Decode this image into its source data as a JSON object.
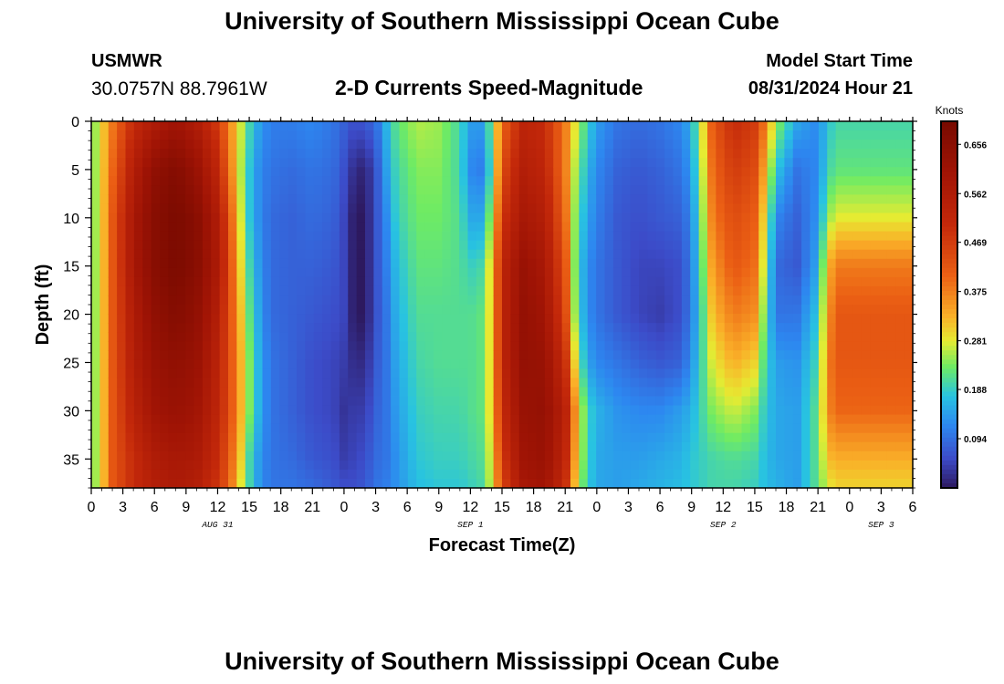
{
  "header": {
    "title": "University of Southern Mississippi Ocean Cube",
    "station": "USMWR",
    "coordinates": "30.0757N  88.7961W",
    "subtitle": "2-D Currents Speed-Magnitude",
    "model_start_label": "Model Start Time",
    "model_start_time": "08/31/2024 Hour 21"
  },
  "footer": {
    "title": "University of Southern Mississippi Ocean Cube"
  },
  "chart_data": {
    "type": "heatmap",
    "title": "2-D Currents Speed-Magnitude",
    "xlabel": "Forecast Time(Z)",
    "ylabel": "Depth (ft)",
    "x_unit": "hours since 08/31/2024 00Z",
    "xlim": [
      0,
      78
    ],
    "ylim": [
      0,
      38
    ],
    "y_inverted": true,
    "x_ticks": [
      0,
      3,
      6,
      9,
      12,
      15,
      18,
      21,
      24,
      27,
      30,
      33,
      36,
      39,
      42,
      45,
      48,
      51,
      54,
      57,
      60,
      63,
      66,
      69,
      72,
      75,
      78
    ],
    "x_tick_labels": [
      "0",
      "3",
      "6",
      "9",
      "12",
      "15",
      "18",
      "21",
      "0",
      "3",
      "6",
      "9",
      "12",
      "15",
      "18",
      "21",
      "0",
      "3",
      "6",
      "9",
      "12",
      "15",
      "18",
      "21",
      "0",
      "3",
      "6"
    ],
    "y_ticks": [
      0,
      5,
      10,
      15,
      20,
      25,
      30,
      35
    ],
    "y_tick_labels": [
      "0",
      "5",
      "10",
      "15",
      "20",
      "25",
      "30",
      "35"
    ],
    "day_labels": [
      {
        "hour": 12,
        "label": "AUG 31"
      },
      {
        "hour": 36,
        "label": "SEP 1"
      },
      {
        "hour": 60,
        "label": "SEP 2"
      },
      {
        "hour": 75,
        "label": "SEP 3"
      }
    ],
    "colorbar": {
      "label": "Knots",
      "range": [
        0,
        0.7
      ],
      "ticks": [
        0.656,
        0.562,
        0.469,
        0.375,
        0.281,
        0.188,
        0.094
      ],
      "tick_labels": [
        "0.656",
        "0.562",
        "0.469",
        "0.375",
        "0.281",
        "0.188",
        "0.094"
      ]
    },
    "depths": [
      0,
      5,
      10,
      15,
      20,
      25,
      30,
      35,
      38
    ],
    "profiles": [
      {
        "hour": 0,
        "speeds": [
          0.22,
          0.22,
          0.22,
          0.22,
          0.22,
          0.22,
          0.22,
          0.22,
          0.22
        ]
      },
      {
        "hour": 1,
        "speeds": [
          0.3,
          0.3,
          0.3,
          0.3,
          0.3,
          0.3,
          0.3,
          0.3,
          0.3
        ]
      },
      {
        "hour": 2,
        "speeds": [
          0.38,
          0.4,
          0.42,
          0.42,
          0.42,
          0.42,
          0.42,
          0.42,
          0.42
        ]
      },
      {
        "hour": 4,
        "speeds": [
          0.5,
          0.55,
          0.58,
          0.58,
          0.56,
          0.55,
          0.53,
          0.5,
          0.5
        ]
      },
      {
        "hour": 6,
        "speeds": [
          0.56,
          0.64,
          0.66,
          0.66,
          0.64,
          0.62,
          0.6,
          0.56,
          0.55
        ]
      },
      {
        "hour": 8,
        "speeds": [
          0.6,
          0.67,
          0.69,
          0.69,
          0.67,
          0.64,
          0.62,
          0.58,
          0.57
        ]
      },
      {
        "hour": 10,
        "speeds": [
          0.56,
          0.62,
          0.66,
          0.66,
          0.64,
          0.62,
          0.6,
          0.57,
          0.55
        ]
      },
      {
        "hour": 12,
        "speeds": [
          0.47,
          0.52,
          0.56,
          0.57,
          0.55,
          0.53,
          0.52,
          0.5,
          0.48
        ]
      },
      {
        "hour": 13,
        "speeds": [
          0.38,
          0.41,
          0.45,
          0.46,
          0.45,
          0.45,
          0.45,
          0.43,
          0.42
        ]
      },
      {
        "hour": 14,
        "speeds": [
          0.29,
          0.28,
          0.3,
          0.32,
          0.34,
          0.35,
          0.35,
          0.33,
          0.3
        ]
      },
      {
        "hour": 15,
        "speeds": [
          0.2,
          0.18,
          0.18,
          0.2,
          0.22,
          0.24,
          0.24,
          0.2,
          0.2
        ]
      },
      {
        "hour": 16,
        "speeds": [
          0.14,
          0.12,
          0.12,
          0.13,
          0.14,
          0.15,
          0.15,
          0.13,
          0.13
        ]
      },
      {
        "hour": 17,
        "speeds": [
          0.11,
          0.1,
          0.09,
          0.09,
          0.09,
          0.1,
          0.1,
          0.1,
          0.1
        ]
      },
      {
        "hour": 19,
        "speeds": [
          0.11,
          0.09,
          0.08,
          0.08,
          0.08,
          0.08,
          0.08,
          0.09,
          0.1
        ]
      },
      {
        "hour": 21,
        "speeds": [
          0.12,
          0.1,
          0.09,
          0.08,
          0.07,
          0.06,
          0.06,
          0.07,
          0.09
        ]
      },
      {
        "hour": 23,
        "speeds": [
          0.1,
          0.09,
          0.08,
          0.07,
          0.06,
          0.05,
          0.05,
          0.06,
          0.07
        ]
      },
      {
        "hour": 24,
        "speeds": [
          0.08,
          0.06,
          0.05,
          0.05,
          0.05,
          0.04,
          0.03,
          0.04,
          0.06
        ]
      },
      {
        "hour": 25,
        "speeds": [
          0.06,
          0.02,
          0.0,
          0.0,
          0.0,
          0.02,
          0.04,
          0.05,
          0.06
        ]
      },
      {
        "hour": 26,
        "speeds": [
          0.07,
          0.01,
          0.0,
          0.0,
          0.0,
          0.02,
          0.04,
          0.06,
          0.07
        ]
      },
      {
        "hour": 27,
        "speeds": [
          0.09,
          0.06,
          0.06,
          0.06,
          0.06,
          0.07,
          0.08,
          0.09,
          0.1
        ]
      },
      {
        "hour": 28,
        "speeds": [
          0.16,
          0.14,
          0.12,
          0.11,
          0.1,
          0.1,
          0.1,
          0.1,
          0.11
        ]
      },
      {
        "hour": 29,
        "speeds": [
          0.22,
          0.2,
          0.19,
          0.17,
          0.16,
          0.15,
          0.14,
          0.13,
          0.13
        ]
      },
      {
        "hour": 31,
        "speeds": [
          0.26,
          0.24,
          0.23,
          0.22,
          0.21,
          0.2,
          0.19,
          0.18,
          0.17
        ]
      },
      {
        "hour": 33,
        "speeds": [
          0.25,
          0.24,
          0.23,
          0.22,
          0.21,
          0.21,
          0.2,
          0.19,
          0.18
        ]
      },
      {
        "hour": 35,
        "speeds": [
          0.2,
          0.2,
          0.21,
          0.21,
          0.21,
          0.21,
          0.2,
          0.19,
          0.18
        ]
      },
      {
        "hour": 36,
        "speeds": [
          0.14,
          0.12,
          0.15,
          0.19,
          0.21,
          0.21,
          0.21,
          0.2,
          0.19
        ]
      },
      {
        "hour": 37,
        "speeds": [
          0.14,
          0.11,
          0.15,
          0.2,
          0.22,
          0.22,
          0.22,
          0.21,
          0.2
        ]
      },
      {
        "hour": 38,
        "speeds": [
          0.22,
          0.2,
          0.25,
          0.3,
          0.3,
          0.3,
          0.3,
          0.28,
          0.27
        ]
      },
      {
        "hour": 39,
        "speeds": [
          0.4,
          0.44,
          0.48,
          0.52,
          0.52,
          0.52,
          0.5,
          0.47,
          0.45
        ]
      },
      {
        "hour": 41,
        "speeds": [
          0.52,
          0.55,
          0.58,
          0.62,
          0.63,
          0.63,
          0.62,
          0.6,
          0.58
        ]
      },
      {
        "hour": 43,
        "speeds": [
          0.5,
          0.52,
          0.55,
          0.58,
          0.6,
          0.62,
          0.63,
          0.62,
          0.6
        ]
      },
      {
        "hour": 45,
        "speeds": [
          0.38,
          0.38,
          0.4,
          0.43,
          0.45,
          0.5,
          0.54,
          0.52,
          0.5
        ]
      },
      {
        "hour": 46,
        "speeds": [
          0.28,
          0.25,
          0.23,
          0.22,
          0.23,
          0.28,
          0.35,
          0.33,
          0.3
        ]
      },
      {
        "hour": 47,
        "speeds": [
          0.2,
          0.17,
          0.15,
          0.13,
          0.13,
          0.15,
          0.2,
          0.2,
          0.19
        ]
      },
      {
        "hour": 48,
        "speeds": [
          0.14,
          0.12,
          0.11,
          0.1,
          0.1,
          0.12,
          0.16,
          0.15,
          0.15
        ]
      },
      {
        "hour": 50,
        "speeds": [
          0.1,
          0.08,
          0.07,
          0.07,
          0.07,
          0.1,
          0.13,
          0.14,
          0.14
        ]
      },
      {
        "hour": 52,
        "speeds": [
          0.09,
          0.07,
          0.06,
          0.05,
          0.05,
          0.08,
          0.12,
          0.14,
          0.15
        ]
      },
      {
        "hour": 54,
        "speeds": [
          0.1,
          0.08,
          0.07,
          0.05,
          0.04,
          0.07,
          0.12,
          0.15,
          0.16
        ]
      },
      {
        "hour": 56,
        "speeds": [
          0.12,
          0.1,
          0.08,
          0.06,
          0.06,
          0.08,
          0.14,
          0.16,
          0.17
        ]
      },
      {
        "hour": 57,
        "speeds": [
          0.16,
          0.14,
          0.12,
          0.11,
          0.11,
          0.13,
          0.16,
          0.18,
          0.18
        ]
      },
      {
        "hour": 58,
        "speeds": [
          0.28,
          0.26,
          0.24,
          0.22,
          0.2,
          0.2,
          0.2,
          0.19,
          0.19
        ]
      },
      {
        "hour": 59,
        "speeds": [
          0.42,
          0.4,
          0.38,
          0.35,
          0.32,
          0.28,
          0.24,
          0.2,
          0.2
        ]
      },
      {
        "hour": 61,
        "speeds": [
          0.5,
          0.47,
          0.44,
          0.42,
          0.38,
          0.33,
          0.27,
          0.21,
          0.2
        ]
      },
      {
        "hour": 63,
        "speeds": [
          0.47,
          0.44,
          0.41,
          0.39,
          0.36,
          0.3,
          0.24,
          0.2,
          0.19
        ]
      },
      {
        "hour": 64,
        "speeds": [
          0.38,
          0.33,
          0.28,
          0.25,
          0.22,
          0.2,
          0.18,
          0.17,
          0.17
        ]
      },
      {
        "hour": 65,
        "speeds": [
          0.25,
          0.18,
          0.12,
          0.09,
          0.1,
          0.14,
          0.15,
          0.15,
          0.16
        ]
      },
      {
        "hour": 67,
        "speeds": [
          0.15,
          0.1,
          0.08,
          0.07,
          0.1,
          0.13,
          0.14,
          0.14,
          0.14
        ]
      },
      {
        "hour": 69,
        "speeds": [
          0.12,
          0.12,
          0.13,
          0.15,
          0.18,
          0.2,
          0.22,
          0.22,
          0.22
        ]
      },
      {
        "hour": 70,
        "speeds": [
          0.18,
          0.2,
          0.25,
          0.33,
          0.36,
          0.38,
          0.37,
          0.32,
          0.28
        ]
      },
      {
        "hour": 71,
        "speeds": [
          0.2,
          0.22,
          0.28,
          0.38,
          0.42,
          0.42,
          0.4,
          0.33,
          0.3
        ]
      }
    ]
  }
}
